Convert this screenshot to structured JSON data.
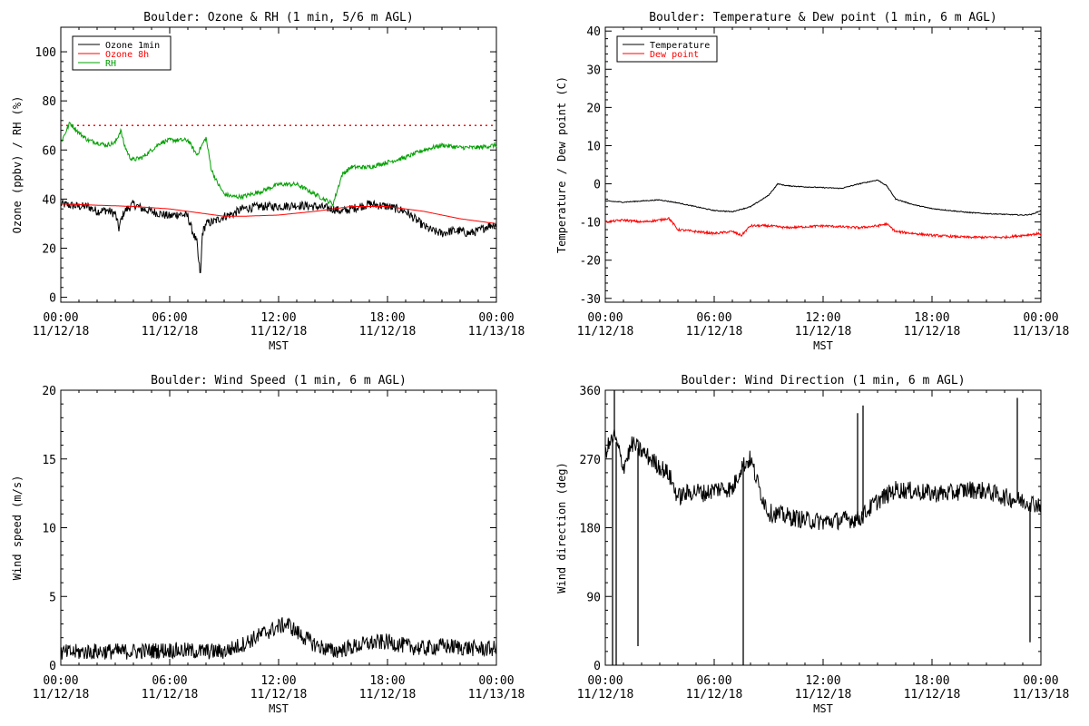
{
  "chart_data": [
    {
      "type": "line",
      "title": "Boulder: Ozone & RH (1 min, 5/6 m AGL)",
      "xlabel": "MST",
      "ylabel": "Ozone (ppbv) / RH (%)",
      "x_ticks": [
        {
          "hour": 0,
          "time": "00:00",
          "date": "11/12/18"
        },
        {
          "hour": 6,
          "time": "06:00",
          "date": "11/12/18"
        },
        {
          "hour": 12,
          "time": "12:00",
          "date": "11/12/18"
        },
        {
          "hour": 18,
          "time": "18:00",
          "date": "11/12/18"
        },
        {
          "hour": 24,
          "time": "00:00",
          "date": "11/13/18"
        }
      ],
      "xlim": [
        0,
        24
      ],
      "ylim": [
        -2,
        110
      ],
      "yticks": [
        0,
        20,
        40,
        60,
        80,
        100
      ],
      "legend": "top-left",
      "reference_lines": [
        {
          "y": 70,
          "color": "#ff0000",
          "style": "dotted"
        }
      ],
      "series": [
        {
          "name": "Ozone 1min",
          "color": "#000000",
          "noise": 1.8,
          "x": [
            0,
            0.5,
            1,
            1.5,
            2,
            2.5,
            3,
            3.2,
            3.35,
            3.5,
            4,
            4.5,
            5,
            5.5,
            6,
            6.5,
            7,
            7.2,
            7.5,
            7.6,
            7.7,
            7.8,
            8,
            8.5,
            9,
            9.5,
            10,
            11,
            12,
            13,
            14,
            15,
            15.5,
            16,
            17,
            18,
            18.5,
            19,
            19.5,
            20,
            20.5,
            21,
            21.5,
            22,
            22.5,
            23,
            23.5,
            24
          ],
          "y": [
            38,
            37.5,
            37,
            37,
            35,
            35.5,
            34,
            28,
            32,
            35,
            38,
            36,
            35,
            34,
            33,
            34,
            33,
            28,
            22,
            14,
            9,
            26,
            30,
            31,
            33,
            34,
            36,
            37,
            37,
            37.5,
            37,
            36,
            35,
            36,
            38,
            37,
            36,
            35,
            32,
            29,
            27,
            26,
            27,
            27,
            26,
            27,
            29,
            30
          ]
        },
        {
          "name": "Ozone 8h",
          "color": "#ff0000",
          "noise": 0,
          "x": [
            0,
            2,
            4,
            6,
            8,
            9,
            10,
            12,
            14,
            16,
            18,
            20,
            22,
            24
          ],
          "y": [
            38,
            37.5,
            37,
            36,
            34,
            33,
            33,
            33.5,
            35,
            37,
            37,
            35,
            32,
            30
          ]
        },
        {
          "name": "RH",
          "color": "#00a000",
          "noise": 0.9,
          "x": [
            0,
            0.5,
            1,
            1.5,
            2,
            2.5,
            3,
            3.3,
            3.5,
            3.8,
            4,
            4.5,
            5,
            5.5,
            6,
            7,
            7.5,
            8,
            8.3,
            8.6,
            9,
            9.5,
            10,
            11,
            12,
            13,
            14,
            14.5,
            15,
            15.5,
            16,
            17,
            18,
            19,
            20,
            21,
            22,
            23,
            24
          ],
          "y": [
            63,
            71,
            67,
            64,
            63,
            62,
            63,
            68,
            62,
            57,
            56,
            57,
            60,
            63,
            64,
            64,
            58,
            65,
            52,
            47,
            42,
            41,
            41,
            43,
            46,
            46,
            42,
            40,
            38,
            50,
            53,
            53,
            55,
            57,
            60,
            62,
            61,
            61,
            62
          ]
        }
      ]
    },
    {
      "type": "line",
      "title": "Boulder: Temperature & Dew point (1 min, 6 m AGL)",
      "xlabel": "MST",
      "ylabel": "Temperature / Dew point (C)",
      "x_ticks": [
        {
          "hour": 0,
          "time": "00:00",
          "date": "11/12/18"
        },
        {
          "hour": 6,
          "time": "06:00",
          "date": "11/12/18"
        },
        {
          "hour": 12,
          "time": "12:00",
          "date": "11/12/18"
        },
        {
          "hour": 18,
          "time": "18:00",
          "date": "11/12/18"
        },
        {
          "hour": 24,
          "time": "00:00",
          "date": "11/13/18"
        }
      ],
      "xlim": [
        0,
        24
      ],
      "ylim": [
        -31,
        41
      ],
      "yticks": [
        -30,
        -20,
        -10,
        0,
        10,
        20,
        30,
        40
      ],
      "legend": "top-left",
      "series": [
        {
          "name": "Temperature",
          "color": "#000000",
          "noise": 0.12,
          "x": [
            0,
            1,
            2,
            3,
            4,
            5,
            6,
            7,
            8,
            9,
            9.5,
            10,
            11,
            12,
            13,
            14,
            15,
            15.5,
            16,
            17,
            18,
            19,
            20,
            21,
            22,
            23,
            23.5,
            24
          ],
          "y": [
            -4.5,
            -4.8,
            -4.5,
            -4.2,
            -5,
            -6,
            -7,
            -7.3,
            -6,
            -3,
            0,
            -0.5,
            -0.8,
            -1,
            -1.2,
            0,
            1,
            -0.5,
            -4,
            -5.5,
            -6.5,
            -7,
            -7.5,
            -7.8,
            -8,
            -8.2,
            -8,
            -7
          ]
        },
        {
          "name": "Dew point",
          "color": "#ff0000",
          "noise": 0.3,
          "x": [
            0,
            1,
            2,
            3,
            3.5,
            4,
            5,
            6,
            7,
            7.5,
            8,
            9,
            10,
            12,
            14,
            15,
            15.5,
            16,
            17,
            18,
            20,
            22,
            24
          ],
          "y": [
            -10,
            -9.5,
            -10,
            -9.5,
            -9,
            -12,
            -12.5,
            -13,
            -12.5,
            -13.5,
            -11,
            -11,
            -11.5,
            -11,
            -11.5,
            -11,
            -10.5,
            -12.5,
            -13,
            -13.5,
            -14,
            -14,
            -13
          ]
        }
      ]
    },
    {
      "type": "line",
      "title": "Boulder: Wind Speed (1 min, 6 m AGL)",
      "xlabel": "MST",
      "ylabel": "Wind speed (m/s)",
      "x_ticks": [
        {
          "hour": 0,
          "time": "00:00",
          "date": "11/12/18"
        },
        {
          "hour": 6,
          "time": "06:00",
          "date": "11/12/18"
        },
        {
          "hour": 12,
          "time": "12:00",
          "date": "11/12/18"
        },
        {
          "hour": 18,
          "time": "18:00",
          "date": "11/12/18"
        },
        {
          "hour": 24,
          "time": "00:00",
          "date": "11/13/18"
        }
      ],
      "xlim": [
        0,
        24
      ],
      "ylim": [
        0,
        20
      ],
      "yticks": [
        0,
        5,
        10,
        15,
        20
      ],
      "series": [
        {
          "color": "#000000",
          "noise": 0.6,
          "x": [
            0,
            2,
            4,
            6,
            8,
            9,
            10,
            11,
            12,
            12.5,
            13,
            14,
            15,
            16,
            17,
            18,
            19,
            20,
            21,
            22,
            23,
            24
          ],
          "y": [
            0.9,
            1.0,
            1.0,
            1.1,
            1.0,
            1.0,
            1.5,
            2.2,
            2.8,
            3.0,
            2.4,
            1.5,
            1.0,
            1.3,
            1.6,
            1.7,
            1.4,
            1.2,
            1.4,
            1.3,
            1.2,
            1.2
          ]
        }
      ]
    },
    {
      "type": "line",
      "title": "Boulder: Wind Direction (1 min, 6 m AGL)",
      "xlabel": "MST",
      "ylabel": "Wind direction (deg)",
      "x_ticks": [
        {
          "hour": 0,
          "time": "00:00",
          "date": "11/12/18"
        },
        {
          "hour": 6,
          "time": "06:00",
          "date": "11/12/18"
        },
        {
          "hour": 12,
          "time": "12:00",
          "date": "11/12/18"
        },
        {
          "hour": 18,
          "time": "18:00",
          "date": "11/12/18"
        },
        {
          "hour": 24,
          "time": "00:00",
          "date": "11/13/18"
        }
      ],
      "xlim": [
        0,
        24
      ],
      "ylim": [
        0,
        360
      ],
      "yticks": [
        0,
        90,
        180,
        270,
        360
      ],
      "series": [
        {
          "color": "#000000",
          "noise": 12,
          "x": [
            0,
            0.5,
            1,
            1.5,
            2,
            2.5,
            3,
            3.5,
            4,
            4.5,
            5,
            5.5,
            6,
            6.5,
            7,
            7.5,
            8,
            8.5,
            9,
            10,
            11,
            12,
            13,
            14,
            15,
            16,
            17,
            18,
            19,
            20,
            21,
            22,
            23,
            24
          ],
          "y": [
            280,
            300,
            260,
            290,
            280,
            270,
            260,
            250,
            220,
            225,
            228,
            225,
            230,
            232,
            230,
            260,
            270,
            230,
            200,
            195,
            190,
            188,
            190,
            192,
            215,
            230,
            228,
            225,
            225,
            230,
            228,
            220,
            215,
            210
          ]
        }
      ],
      "spikes": [
        {
          "x": 0.4,
          "y": 0
        },
        {
          "x": 0.6,
          "y": 0
        },
        {
          "x": 0.5,
          "y": 360
        },
        {
          "x": 1.8,
          "y": 25
        },
        {
          "x": 7.6,
          "y": 0
        },
        {
          "x": 13.9,
          "y": 330
        },
        {
          "x": 14.2,
          "y": 340
        },
        {
          "x": 22.7,
          "y": 350
        },
        {
          "x": 23.4,
          "y": 30
        }
      ]
    }
  ]
}
